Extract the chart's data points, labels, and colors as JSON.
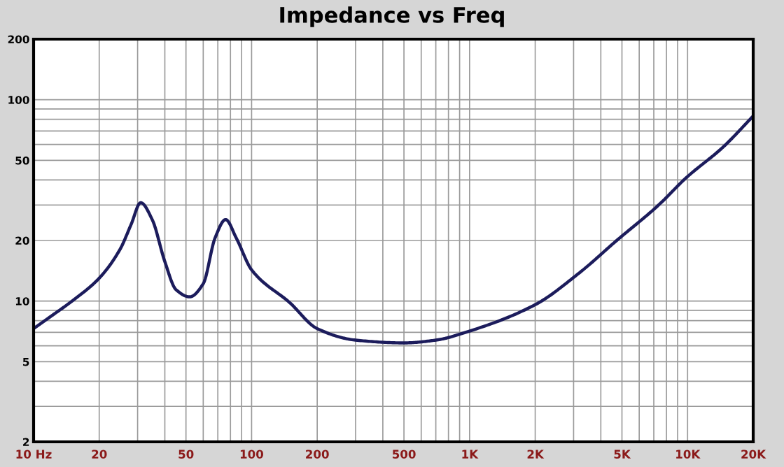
{
  "chart_data": {
    "type": "line",
    "title": "Impedance vs Freq",
    "x": [
      10,
      12,
      15,
      20,
      25,
      28,
      31,
      35,
      40,
      45,
      52,
      60,
      68,
      76,
      85,
      100,
      150,
      200,
      300,
      500,
      700,
      1000,
      2000,
      3185,
      4730,
      7340,
      9860,
      14500,
      20000
    ],
    "series": [
      {
        "color": "#1c1c5c",
        "values": [
          7.3,
          8.4,
          10,
          13,
          18.2,
          24,
          30.8,
          25.4,
          15.7,
          11.4,
          10.5,
          12.2,
          20.6,
          25.4,
          20.6,
          14.3,
          9.8,
          7.3,
          6.4,
          6.2,
          6.4,
          7.1,
          9.6,
          13.8,
          20,
          29.9,
          41,
          58,
          83
        ]
      }
    ],
    "log": "xy",
    "xlim": [
      10,
      20000
    ],
    "ylim": [
      2,
      200
    ],
    "xticks": [
      {
        "value": 10,
        "label": "10 Hz"
      },
      20,
      50,
      100,
      200,
      500,
      {
        "value": 1000,
        "label": "1K"
      },
      {
        "value": 2000,
        "label": "2K"
      },
      {
        "value": 5000,
        "label": "5K"
      },
      {
        "value": 10000,
        "label": "10K"
      },
      {
        "value": 20000,
        "label": "20K"
      }
    ],
    "yticks": [
      2,
      5,
      10,
      20,
      50,
      100,
      200
    ],
    "grid": true,
    "line_style": "solid",
    "marker": "none"
  }
}
